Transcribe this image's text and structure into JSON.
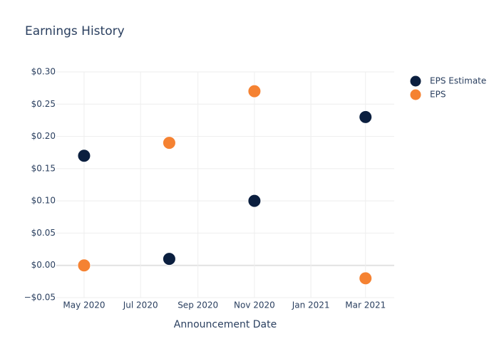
{
  "chart_data": {
    "type": "scatter",
    "title": "Earnings History",
    "x_label": "Announcement Date",
    "x": [
      "2020-05",
      "2020-08",
      "2020-11",
      "2021-03"
    ],
    "series": [
      {
        "name": "EPS Estimate",
        "color": "#0b1f3f",
        "values": [
          0.17,
          0.01,
          0.1,
          0.23
        ]
      },
      {
        "name": "EPS",
        "color": "#f58232",
        "values": [
          0,
          0.19,
          0.27,
          -0.02
        ]
      }
    ],
    "xlim": [
      "2020-04",
      "2021-04"
    ],
    "xticks": [
      {
        "value": "2020-05",
        "label": "May 2020"
      },
      {
        "value": "2020-07",
        "label": "Jul 2020"
      },
      {
        "value": "2020-09",
        "label": "Sep 2020"
      },
      {
        "value": "2020-11",
        "label": "Nov 2020"
      },
      {
        "value": "2021-01",
        "label": "Jan 2021"
      },
      {
        "value": "2021-03",
        "label": "Mar 2021"
      }
    ],
    "ylim": [
      -0.05,
      0.3
    ],
    "yticks": [
      {
        "value": -0.05,
        "label": "−$0.05"
      },
      {
        "value": 0,
        "label": "$0.00"
      },
      {
        "value": 0.05,
        "label": "$0.05"
      },
      {
        "value": 0.1,
        "label": "$0.10"
      },
      {
        "value": 0.15,
        "label": "$0.15"
      },
      {
        "value": 0.2,
        "label": "$0.20"
      },
      {
        "value": 0.25,
        "label": "$0.25"
      },
      {
        "value": 0.3,
        "label": "$0.30"
      }
    ],
    "grid": true,
    "legend": "top-right"
  }
}
